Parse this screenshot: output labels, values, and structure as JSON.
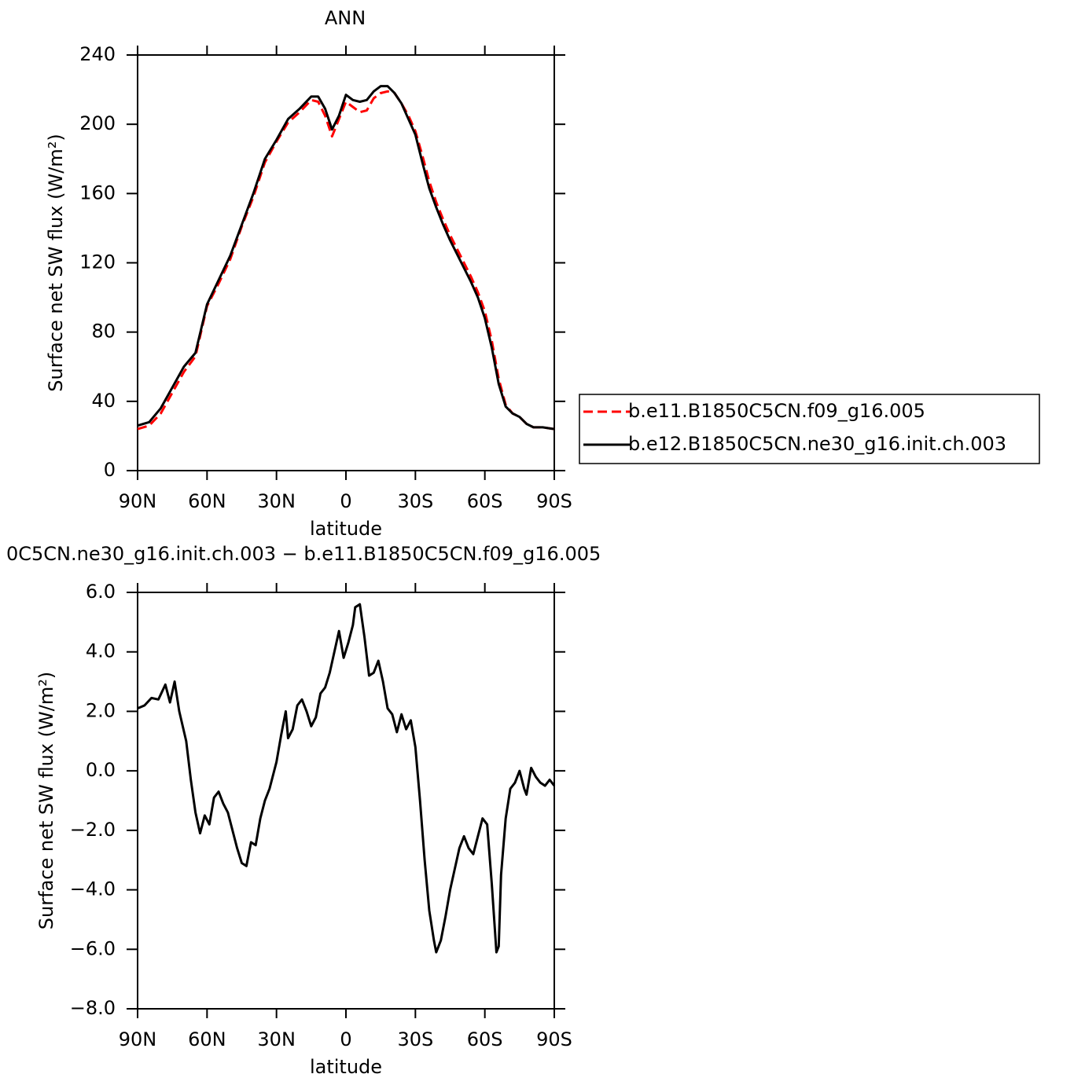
{
  "chart_data": [
    {
      "type": "line",
      "title": "ANN",
      "x_label": "latitude",
      "y_label": "Surface net SW flux (W/m²)",
      "x": [
        90,
        85,
        80,
        75,
        70,
        65,
        60,
        55,
        50,
        45,
        40,
        35,
        30,
        25,
        20,
        15,
        12,
        9,
        6,
        3,
        0,
        -3,
        -6,
        -9,
        -12,
        -15,
        -18,
        -21,
        -24,
        -27,
        -30,
        -33,
        -36,
        -39,
        -42,
        -45,
        -48,
        -51,
        -54,
        -57,
        -60,
        -63,
        -66,
        -69,
        -72,
        -75,
        -78,
        -81,
        -85,
        -90
      ],
      "series": [
        {
          "name": "b.e11.B1850C5CN.f09_g16.005",
          "color": "#ff0000",
          "line_style": "dashed",
          "values": [
            24,
            26,
            33,
            45,
            57,
            66,
            95,
            108,
            122,
            141,
            158,
            178,
            190,
            201,
            207,
            214,
            213,
            205,
            193,
            203,
            213,
            210,
            207,
            208,
            215,
            218,
            219,
            218,
            212,
            205,
            196,
            182,
            167,
            155,
            145,
            136,
            128,
            120,
            112,
            103,
            92,
            75,
            53,
            38,
            33,
            31,
            27,
            25,
            25,
            24
          ]
        },
        {
          "name": "b.e12.B1850C5CN.ne30_g16.init.ch.003",
          "color": "#000000",
          "line_style": "solid",
          "values": [
            26,
            28,
            36,
            48,
            60,
            68,
            96,
            110,
            124,
            142,
            160,
            180,
            191,
            203,
            209,
            216,
            216,
            209,
            197,
            205,
            217,
            214,
            213,
            214,
            219,
            222,
            222,
            218,
            212,
            203,
            194,
            178,
            163,
            152,
            142,
            133,
            125,
            117,
            109,
            100,
            88,
            71,
            50,
            37,
            33,
            31,
            27,
            25,
            25,
            24
          ]
        }
      ],
      "xlim": [
        90,
        -90
      ],
      "ylim": [
        0,
        240
      ],
      "xticks": [
        {
          "value": 90,
          "label": "90N"
        },
        {
          "value": 60,
          "label": "60N"
        },
        {
          "value": 30,
          "label": "30N"
        },
        0,
        {
          "value": -30,
          "label": "30S"
        },
        {
          "value": -60,
          "label": "60S"
        },
        {
          "value": -90,
          "label": "90S"
        }
      ],
      "yticks": [
        0,
        40,
        80,
        120,
        160,
        200,
        240
      ],
      "legend": "right"
    },
    {
      "type": "line",
      "title": "0C5CN.ne30_g16.init.ch.003 − b.e11.B1850C5CN.f09_g16.005",
      "x_label": "latitude",
      "y_label": "Surface net SW flux (W/m²)",
      "x": [
        90,
        87,
        84,
        81,
        78,
        76,
        74,
        72,
        69,
        67,
        65,
        63,
        61,
        59,
        57,
        55,
        53,
        51,
        49,
        47,
        45,
        43,
        41,
        39,
        37,
        35,
        33,
        30,
        28,
        26,
        25,
        23,
        21,
        19,
        17,
        15,
        13,
        11,
        9,
        7,
        5,
        3,
        1,
        -1,
        -3,
        -4,
        -6,
        -8,
        -10,
        -12,
        -14,
        -16,
        -18,
        -20,
        -22,
        -24,
        -26,
        -28,
        -30,
        -32,
        -34,
        -36,
        -38,
        -39,
        -41,
        -43,
        -45,
        -47,
        -49,
        -51,
        -53,
        -55,
        -57,
        -59,
        -61,
        -63,
        -65,
        -66,
        -67,
        -69,
        -71,
        -73,
        -75,
        -77,
        -78,
        -80,
        -82,
        -84,
        -86,
        -88,
        -90
      ],
      "series": [
        {
          "color": "#000000",
          "line_style": "solid",
          "values": [
            2.1,
            2.2,
            2.45,
            2.4,
            2.9,
            2.3,
            3.0,
            2.0,
            1.0,
            -0.3,
            -1.4,
            -2.1,
            -1.5,
            -1.8,
            -0.9,
            -0.7,
            -1.1,
            -1.4,
            -2.0,
            -2.6,
            -3.1,
            -3.2,
            -2.4,
            -2.5,
            -1.6,
            -1.0,
            -0.6,
            0.3,
            1.2,
            2.0,
            1.1,
            1.4,
            2.2,
            2.4,
            2.0,
            1.5,
            1.8,
            2.6,
            2.8,
            3.3,
            4.0,
            4.7,
            3.8,
            4.3,
            4.9,
            5.5,
            5.6,
            4.5,
            3.2,
            3.3,
            3.7,
            3.0,
            2.1,
            1.9,
            1.3,
            1.9,
            1.4,
            1.7,
            0.8,
            -1.0,
            -3.0,
            -4.7,
            -5.7,
            -6.1,
            -5.7,
            -4.9,
            -4.0,
            -3.3,
            -2.6,
            -2.2,
            -2.6,
            -2.8,
            -2.2,
            -1.6,
            -1.8,
            -3.8,
            -6.1,
            -5.9,
            -3.5,
            -1.6,
            -0.6,
            -0.4,
            0.0,
            -0.6,
            -0.8,
            0.1,
            -0.2,
            -0.4,
            -0.5,
            -0.3,
            -0.5
          ]
        }
      ],
      "xlim": [
        90,
        -90
      ],
      "ylim": [
        -8,
        6
      ],
      "xticks": [
        {
          "value": 90,
          "label": "90N"
        },
        {
          "value": 60,
          "label": "60N"
        },
        {
          "value": 30,
          "label": "30N"
        },
        0,
        {
          "value": -30,
          "label": "30S"
        },
        {
          "value": -60,
          "label": "60S"
        },
        {
          "value": -90,
          "label": "90S"
        }
      ],
      "yticks": [
        {
          "value": -8,
          "label": "−8.0"
        },
        {
          "value": -6,
          "label": "−6.0"
        },
        {
          "value": -4,
          "label": "−4.0"
        },
        {
          "value": -2,
          "label": "−2.0"
        },
        {
          "value": 0,
          "label": "0.0"
        },
        {
          "value": 2,
          "label": "2.0"
        },
        {
          "value": 4,
          "label": "4.0"
        },
        {
          "value": 6,
          "label": "6.0"
        }
      ]
    }
  ]
}
